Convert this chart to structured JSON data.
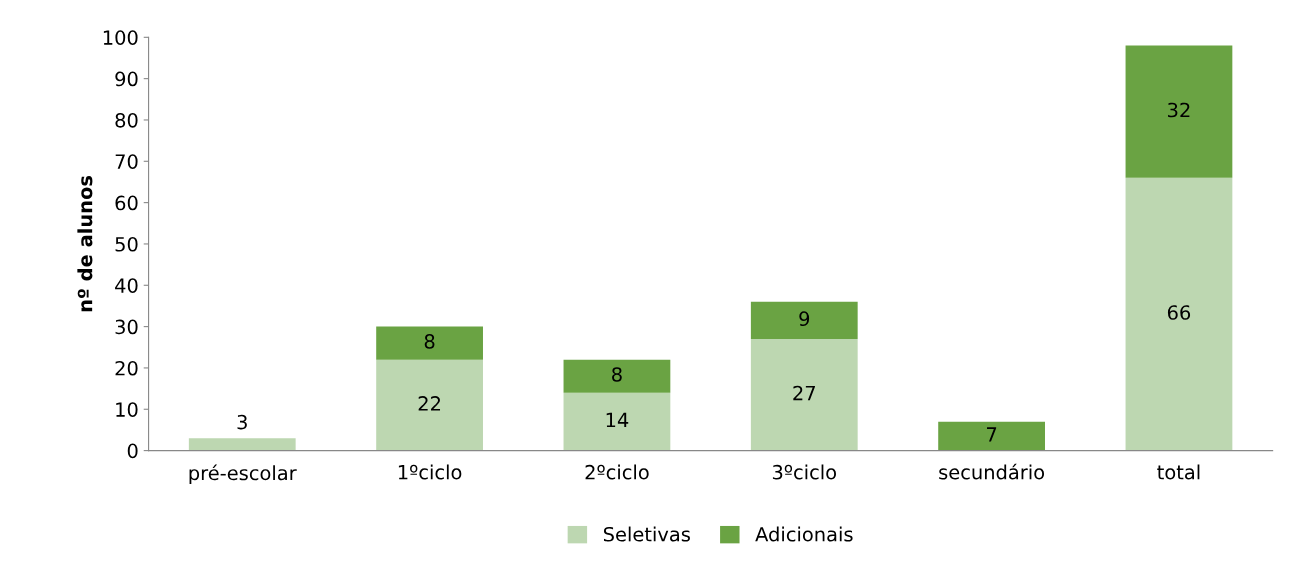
{
  "chart_data": {
    "type": "bar",
    "stacked": true,
    "ylabel": "nº de alunos",
    "categories": [
      "pré-escolar",
      "1ºciclo",
      "2ºciclo",
      "3ºciclo",
      "secundário",
      "total"
    ],
    "series": [
      {
        "name": "Seletivas",
        "color": "#bdd7b1",
        "values": [
          3,
          22,
          14,
          27,
          null,
          66
        ]
      },
      {
        "name": "Adicionais",
        "color": "#6aa343",
        "values": [
          null,
          8,
          8,
          9,
          7,
          32
        ]
      }
    ],
    "ylim": [
      0,
      100
    ],
    "yticks": [
      0,
      10,
      20,
      30,
      40,
      50,
      60,
      70,
      80,
      90,
      100
    ],
    "data_labels": true,
    "grid": false,
    "legend": "bottom"
  }
}
